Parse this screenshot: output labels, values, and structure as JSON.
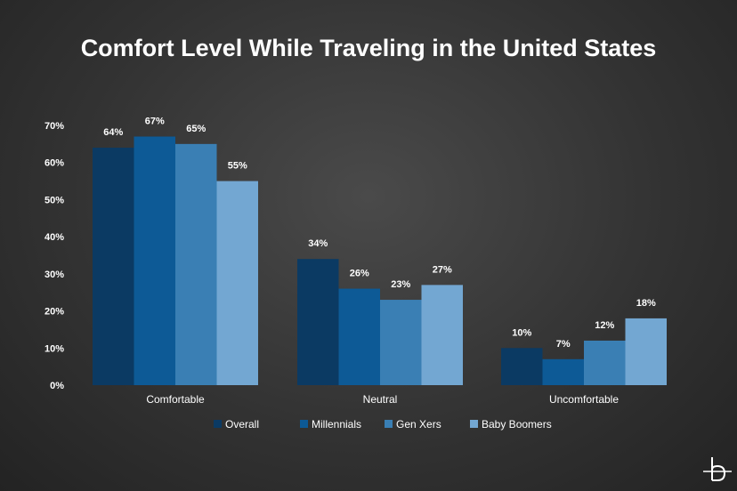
{
  "chart_data": {
    "type": "bar",
    "title": "Comfort Level While Traveling in the United States",
    "categories": [
      "Comfortable",
      "Neutral",
      "Uncomfortable"
    ],
    "series": [
      {
        "name": "Overall",
        "values": [
          64,
          34,
          10
        ],
        "color": "#0b3a63"
      },
      {
        "name": "Millennials",
        "values": [
          67,
          26,
          7
        ],
        "color": "#0d5a96"
      },
      {
        "name": "Gen Xers",
        "values": [
          65,
          23,
          12
        ],
        "color": "#3a7fb4"
      },
      {
        "name": "Baby Boomers",
        "values": [
          55,
          27,
          18
        ],
        "color": "#73a7d2"
      }
    ],
    "yticks": [
      "0%",
      "10%",
      "20%",
      "30%",
      "40%",
      "50%",
      "60%",
      "70%"
    ],
    "ylim": [
      0,
      70
    ],
    "value_suffix": "%",
    "grid": false,
    "legend_position": "bottom"
  },
  "logo": {
    "name": "b-logo-icon"
  }
}
